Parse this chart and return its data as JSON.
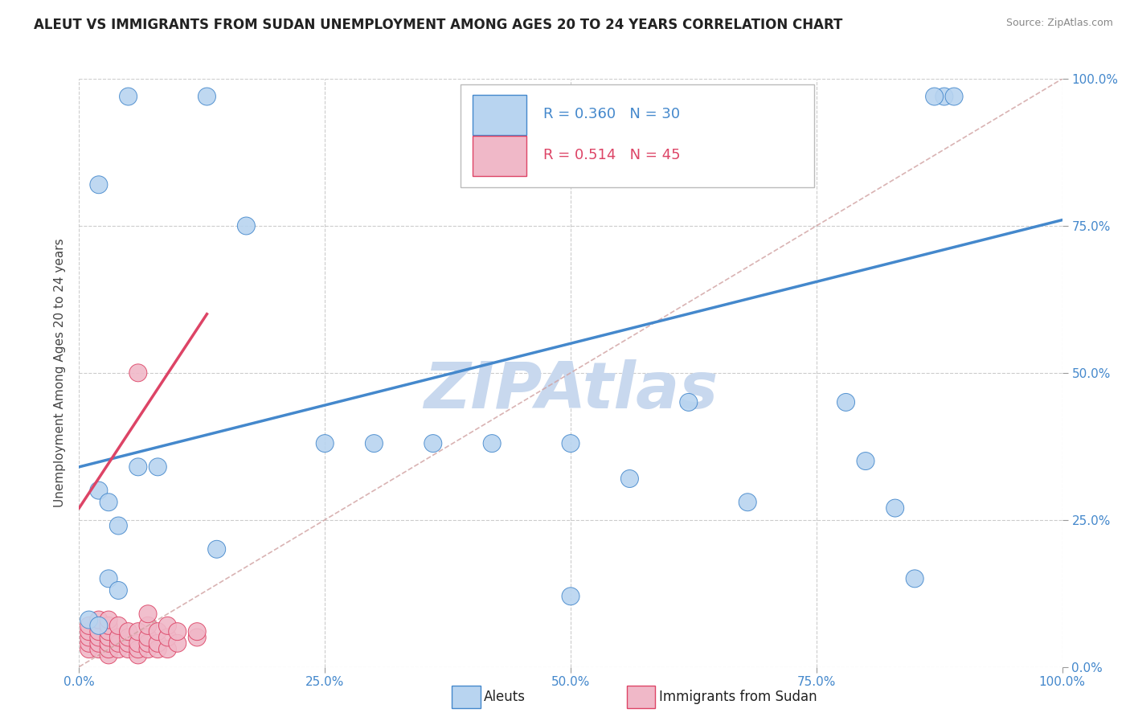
{
  "title": "ALEUT VS IMMIGRANTS FROM SUDAN UNEMPLOYMENT AMONG AGES 20 TO 24 YEARS CORRELATION CHART",
  "source": "Source: ZipAtlas.com",
  "ylabel": "Unemployment Among Ages 20 to 24 years",
  "legend_label1": "Aleuts",
  "legend_label2": "Immigrants from Sudan",
  "r1": 0.36,
  "n1": 30,
  "r2": 0.514,
  "n2": 45,
  "color1": "#b8d4f0",
  "color2": "#f0b8c8",
  "line_color1": "#4488cc",
  "line_color2": "#dd4466",
  "dashed_line_color": "#d0a0a0",
  "grid_color": "#cccccc",
  "title_color": "#222222",
  "axis_text_color": "#4488cc",
  "ylabel_color": "#444444",
  "watermark_color": "#c8d8ee",
  "xlim": [
    0.0,
    1.0
  ],
  "ylim": [
    0.0,
    1.0
  ],
  "aleut_x": [
    0.05,
    0.13,
    0.02,
    0.17,
    0.25,
    0.36,
    0.5,
    0.62,
    0.78,
    0.8,
    0.83,
    0.02,
    0.03,
    0.04,
    0.06,
    0.08,
    0.14,
    0.3,
    0.56,
    0.68,
    0.85,
    0.88,
    0.01,
    0.02,
    0.03,
    0.04,
    0.87,
    0.89,
    0.5,
    0.42
  ],
  "aleut_y": [
    0.97,
    0.97,
    0.82,
    0.75,
    0.38,
    0.38,
    0.38,
    0.45,
    0.45,
    0.35,
    0.27,
    0.3,
    0.28,
    0.24,
    0.34,
    0.34,
    0.2,
    0.38,
    0.32,
    0.28,
    0.15,
    0.97,
    0.08,
    0.07,
    0.15,
    0.13,
    0.97,
    0.97,
    0.12,
    0.38
  ],
  "sudan_x": [
    0.01,
    0.01,
    0.01,
    0.01,
    0.01,
    0.02,
    0.02,
    0.02,
    0.02,
    0.02,
    0.03,
    0.03,
    0.03,
    0.03,
    0.03,
    0.03,
    0.03,
    0.04,
    0.04,
    0.04,
    0.04,
    0.05,
    0.05,
    0.05,
    0.05,
    0.06,
    0.06,
    0.06,
    0.06,
    0.07,
    0.07,
    0.07,
    0.07,
    0.07,
    0.08,
    0.08,
    0.08,
    0.09,
    0.09,
    0.09,
    0.1,
    0.1,
    0.12,
    0.12,
    0.06
  ],
  "sudan_y": [
    0.03,
    0.04,
    0.05,
    0.06,
    0.07,
    0.03,
    0.04,
    0.05,
    0.06,
    0.08,
    0.02,
    0.03,
    0.04,
    0.05,
    0.06,
    0.07,
    0.08,
    0.03,
    0.04,
    0.05,
    0.07,
    0.03,
    0.04,
    0.05,
    0.06,
    0.02,
    0.03,
    0.04,
    0.06,
    0.03,
    0.04,
    0.05,
    0.07,
    0.09,
    0.03,
    0.04,
    0.06,
    0.03,
    0.05,
    0.07,
    0.04,
    0.06,
    0.05,
    0.06,
    0.5
  ],
  "tick_labels": [
    "0.0%",
    "25.0%",
    "50.0%",
    "75.0%",
    "100.0%"
  ],
  "tick_values": [
    0.0,
    0.25,
    0.5,
    0.75,
    1.0
  ],
  "aleut_line_x": [
    0.0,
    1.0
  ],
  "aleut_line_y": [
    0.34,
    0.76
  ],
  "sudan_line_x": [
    0.0,
    0.13
  ],
  "sudan_line_y": [
    0.27,
    0.6
  ],
  "background_color": "#ffffff"
}
